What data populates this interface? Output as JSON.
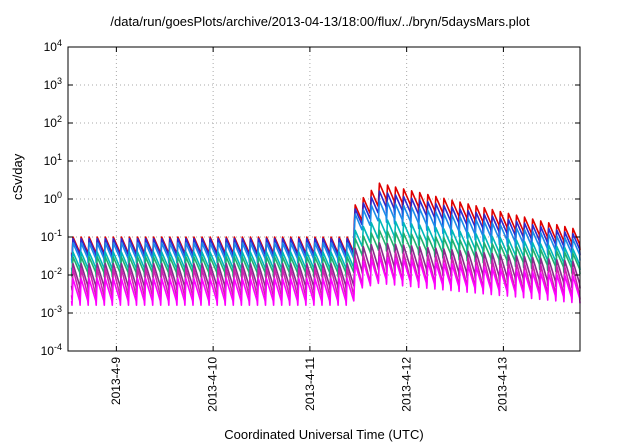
{
  "chart_data": {
    "type": "line",
    "title": "/data/run/goesPlots/archive/2013-04-13/18:00/flux/../bryn/5daysMars.plot",
    "xlabel": "Coordinated Universal Time (UTC)",
    "ylabel": "cSv/day",
    "yscale": "log",
    "ylim": [
      0.0001,
      10000
    ],
    "xlim": [
      "2013-04-08T12:00",
      "2013-04-13T19:00"
    ],
    "grid": true,
    "y_ticks": [
      {
        "base": "10",
        "exp": "-4"
      },
      {
        "base": "10",
        "exp": "-3"
      },
      {
        "base": "10",
        "exp": "-2"
      },
      {
        "base": "10",
        "exp": "-1"
      },
      {
        "base": "10",
        "exp": "0"
      },
      {
        "base": "10",
        "exp": "1"
      },
      {
        "base": "10",
        "exp": "2"
      },
      {
        "base": "10",
        "exp": "3"
      },
      {
        "base": "10",
        "exp": "4"
      }
    ],
    "x_ticks": [
      {
        "label": "2013-4-9",
        "value": "2013-04-09T00:00"
      },
      {
        "label": "2013-4-10",
        "value": "2013-04-10T00:00"
      },
      {
        "label": "2013-4-11",
        "value": "2013-04-11T00:00"
      },
      {
        "label": "2013-4-12",
        "value": "2013-04-12T00:00"
      },
      {
        "label": "2013-4-13",
        "value": "2013-04-13T00:00"
      }
    ],
    "orbit_period_hours": 2,
    "event_start": "2013-04-11T11:00",
    "series": [
      {
        "color": "#e00000",
        "before_peak": 0.1,
        "after_start_peak": 0.7,
        "after_max_peak": 2.6,
        "after_end_peak": 0.15,
        "dip_ratio": 0.3
      },
      {
        "color": "#2a2ad0",
        "before_peak": 0.09,
        "after_start_peak": 0.55,
        "after_max_peak": 1.6,
        "after_end_peak": 0.11,
        "dip_ratio": 0.3
      },
      {
        "color": "#1a8ae8",
        "before_peak": 0.07,
        "after_start_peak": 0.4,
        "after_max_peak": 0.9,
        "after_end_peak": 0.08,
        "dip_ratio": 0.3
      },
      {
        "color": "#00b8b8",
        "before_peak": 0.04,
        "after_start_peak": 0.15,
        "after_max_peak": 0.3,
        "after_end_peak": 0.045,
        "dip_ratio": 0.3
      },
      {
        "color": "#20b070",
        "before_peak": 0.03,
        "after_start_peak": 0.09,
        "after_max_peak": 0.15,
        "after_end_peak": 0.035,
        "dip_ratio": 0.3
      },
      {
        "color": "#8a2a8a",
        "before_peak": 0.02,
        "after_start_peak": 0.05,
        "after_max_peak": 0.07,
        "after_end_peak": 0.022,
        "dip_ratio": 0.2
      },
      {
        "color": "#d020b0",
        "before_peak": 0.015,
        "after_start_peak": 0.03,
        "after_max_peak": 0.045,
        "after_end_peak": 0.015,
        "dip_ratio": 0.15
      },
      {
        "color": "#ff00ff",
        "before_peak": 0.008,
        "after_start_peak": 0.02,
        "after_max_peak": 0.03,
        "after_end_peak": 0.009,
        "dip_ratio": 0.2
      }
    ]
  }
}
